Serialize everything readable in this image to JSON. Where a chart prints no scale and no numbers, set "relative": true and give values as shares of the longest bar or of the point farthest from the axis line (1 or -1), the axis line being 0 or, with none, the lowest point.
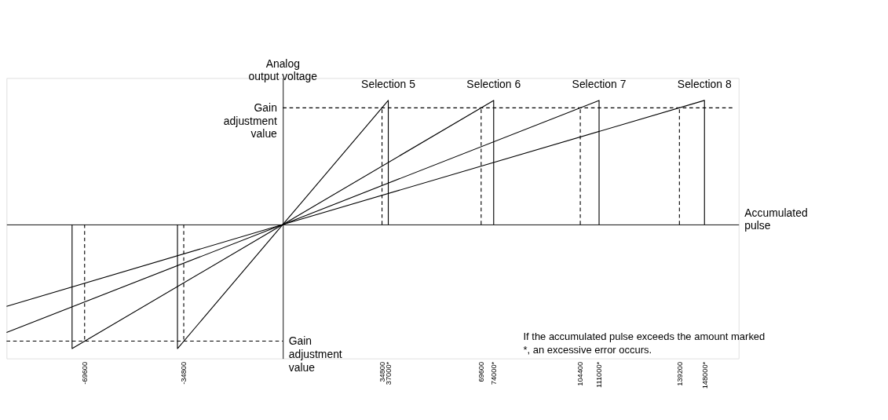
{
  "chart_data": {
    "type": "line",
    "relative": true,
    "xlabel": "Accumulated pulse",
    "ylabel": "Analog output voltage",
    "xlim": [
      -97000,
      160000
    ],
    "xticks": [
      -69600,
      -34800,
      34800,
      {
        "value": 37000,
        "label": "37000*"
      },
      69600,
      {
        "value": 74000,
        "label": "74000*"
      },
      104400,
      {
        "value": 111000,
        "label": "111000*"
      },
      139200,
      {
        "value": 148000,
        "label": "148000*"
      }
    ],
    "grid": false,
    "marker": "none",
    "line_style": "solid",
    "series": [
      {
        "name": "Selection 5",
        "color": "#000000",
        "x": [
          -37000,
          -37000,
          0,
          37000,
          37000
        ],
        "values": [
          0,
          -1,
          0,
          1,
          0
        ]
      },
      {
        "name": "Selection 6",
        "color": "#000000",
        "x": [
          -74000,
          -74000,
          0,
          74000,
          74000
        ],
        "values": [
          0,
          -1,
          0,
          1,
          0
        ]
      },
      {
        "name": "Selection 7",
        "color": "#000000",
        "x": [
          -97000,
          0,
          111000,
          111000
        ],
        "values": [
          -0.87,
          0,
          1,
          0
        ]
      },
      {
        "name": "Selection 8",
        "color": "#000000",
        "x": [
          -97000,
          0,
          148000,
          148000
        ],
        "values": [
          -0.66,
          0,
          1,
          0
        ]
      },
      {
        "color": "#000000",
        "line_style": "dashed",
        "x": [
          0,
          158000
        ],
        "values": [
          0.94,
          0.94
        ]
      },
      {
        "color": "#000000",
        "line_style": "dashed",
        "x": [
          -97000,
          0
        ],
        "values": [
          -0.94,
          -0.94
        ]
      },
      {
        "color": "#000000",
        "line_style": "dashed",
        "x": [
          34800,
          34800
        ],
        "values": [
          0,
          0.94
        ]
      },
      {
        "color": "#000000",
        "line_style": "dashed",
        "x": [
          69600,
          69600
        ],
        "values": [
          0,
          0.94
        ]
      },
      {
        "color": "#000000",
        "line_style": "dashed",
        "x": [
          104400,
          104400
        ],
        "values": [
          0,
          0.94
        ]
      },
      {
        "color": "#000000",
        "line_style": "dashed",
        "x": [
          139200,
          139200
        ],
        "values": [
          0,
          0.94
        ]
      },
      {
        "color": "#000000",
        "line_style": "dashed",
        "x": [
          -34800,
          -34800
        ],
        "values": [
          0,
          -0.94
        ]
      },
      {
        "color": "#000000",
        "line_style": "dashed",
        "x": [
          -69600,
          -69600
        ],
        "values": [
          0,
          -0.94
        ]
      }
    ],
    "annotations": [
      {
        "text": "Gain adjustment value",
        "x": 0,
        "y": 0.94
      },
      {
        "text": "Gain adjustment value",
        "x": 0,
        "y": -0.94
      },
      "If the accumulated pulse exceeds the amount marked *, an excessive error occurs."
    ]
  }
}
